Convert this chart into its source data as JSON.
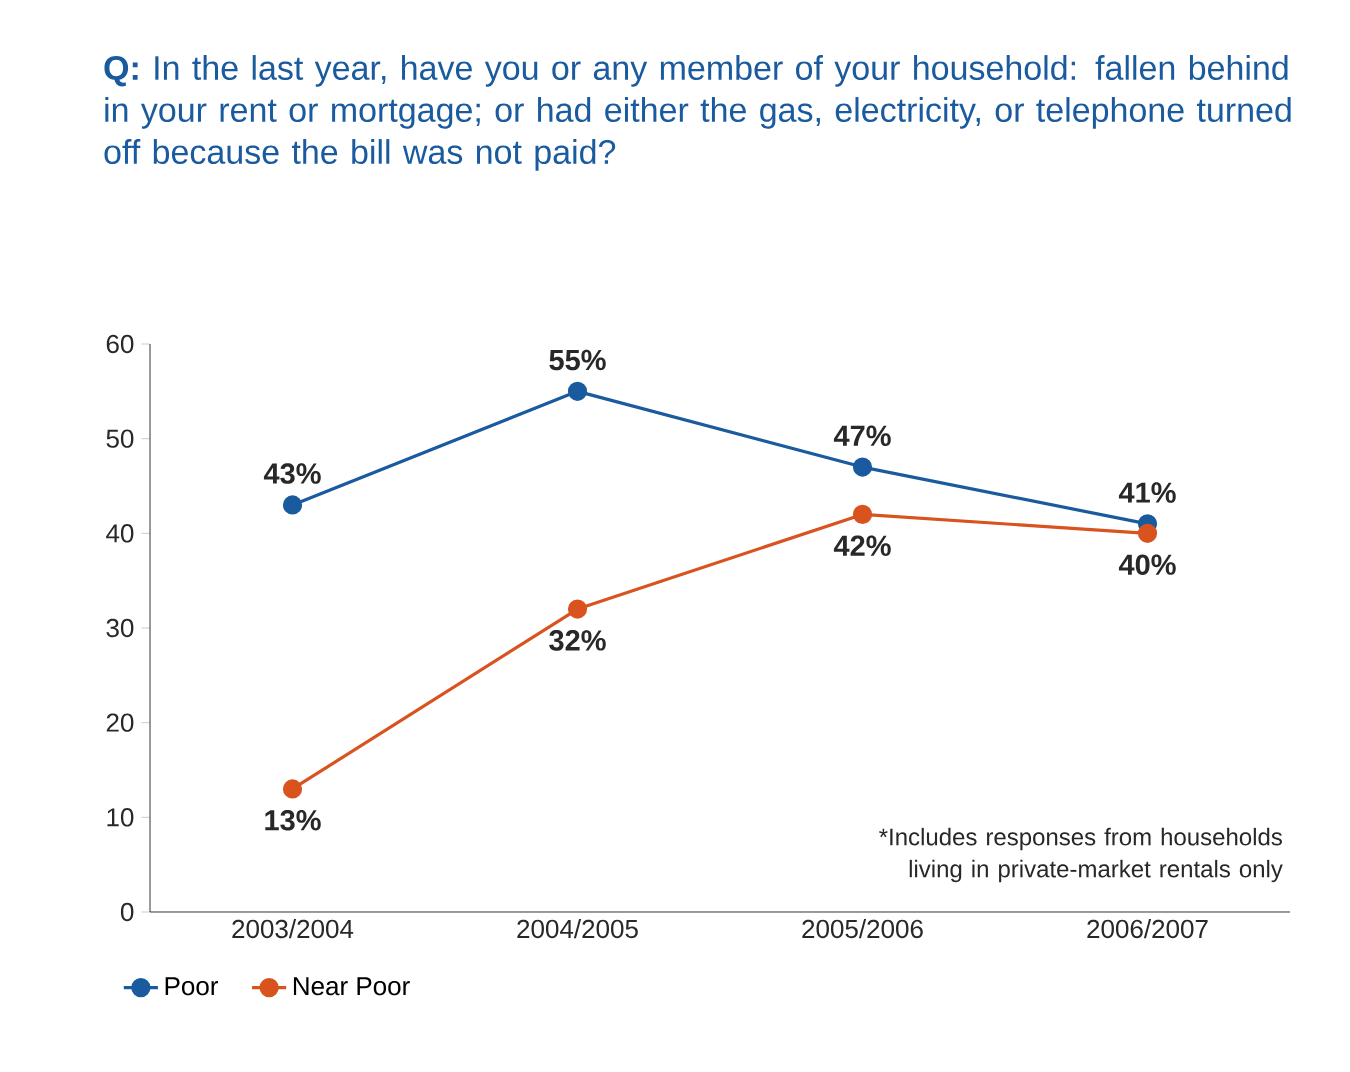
{
  "chart_data": {
    "type": "line",
    "title": "**Q:** In the last year, have you or any member of your household: fallen behind in your rent or mortgage; or had either the gas, electricity, or telephone turned off because the bill was not paid?",
    "categories": [
      "2003/2004",
      "2004/2005",
      "2005/2006",
      "2006/2007"
    ],
    "series": [
      {
        "name": "Poor",
        "color": "#1a5a9e",
        "values": [
          43,
          55,
          47,
          41
        ],
        "value_labels": [
          "43%",
          "55%",
          "47%",
          "41%"
        ]
      },
      {
        "name": "Near Poor",
        "color": "#d9531e",
        "values": [
          13,
          32,
          42,
          40
        ],
        "value_labels": [
          "13%",
          "32%",
          "42%",
          "40%"
        ]
      }
    ],
    "ylim": [
      0,
      60
    ],
    "yticks": [
      0,
      10,
      20,
      30,
      40,
      50,
      60
    ],
    "annotations": [
      "*Includes responses from households living in private-market rentals only"
    ],
    "legend": "bottom left",
    "marker": "circle",
    "line_style": "solid"
  }
}
